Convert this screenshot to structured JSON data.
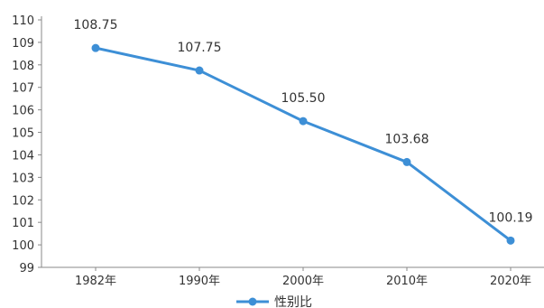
{
  "chart_data": {
    "type": "line",
    "categories": [
      "1982年",
      "1990年",
      "2000年",
      "2010年",
      "2020年"
    ],
    "series": [
      {
        "name": "性别比",
        "values": [
          108.75,
          107.75,
          105.5,
          103.68,
          100.19
        ],
        "labels": [
          "108.75",
          "107.75",
          "105.50",
          "103.68",
          "100.19"
        ],
        "color": "#3d8fd6"
      }
    ],
    "y_ticks": [
      "99",
      "100",
      "101",
      "102",
      "103",
      "104",
      "105",
      "106",
      "107",
      "108",
      "109",
      "110"
    ],
    "ylim": [
      99,
      110
    ],
    "grid": false,
    "legend_position": "bottom-center"
  }
}
